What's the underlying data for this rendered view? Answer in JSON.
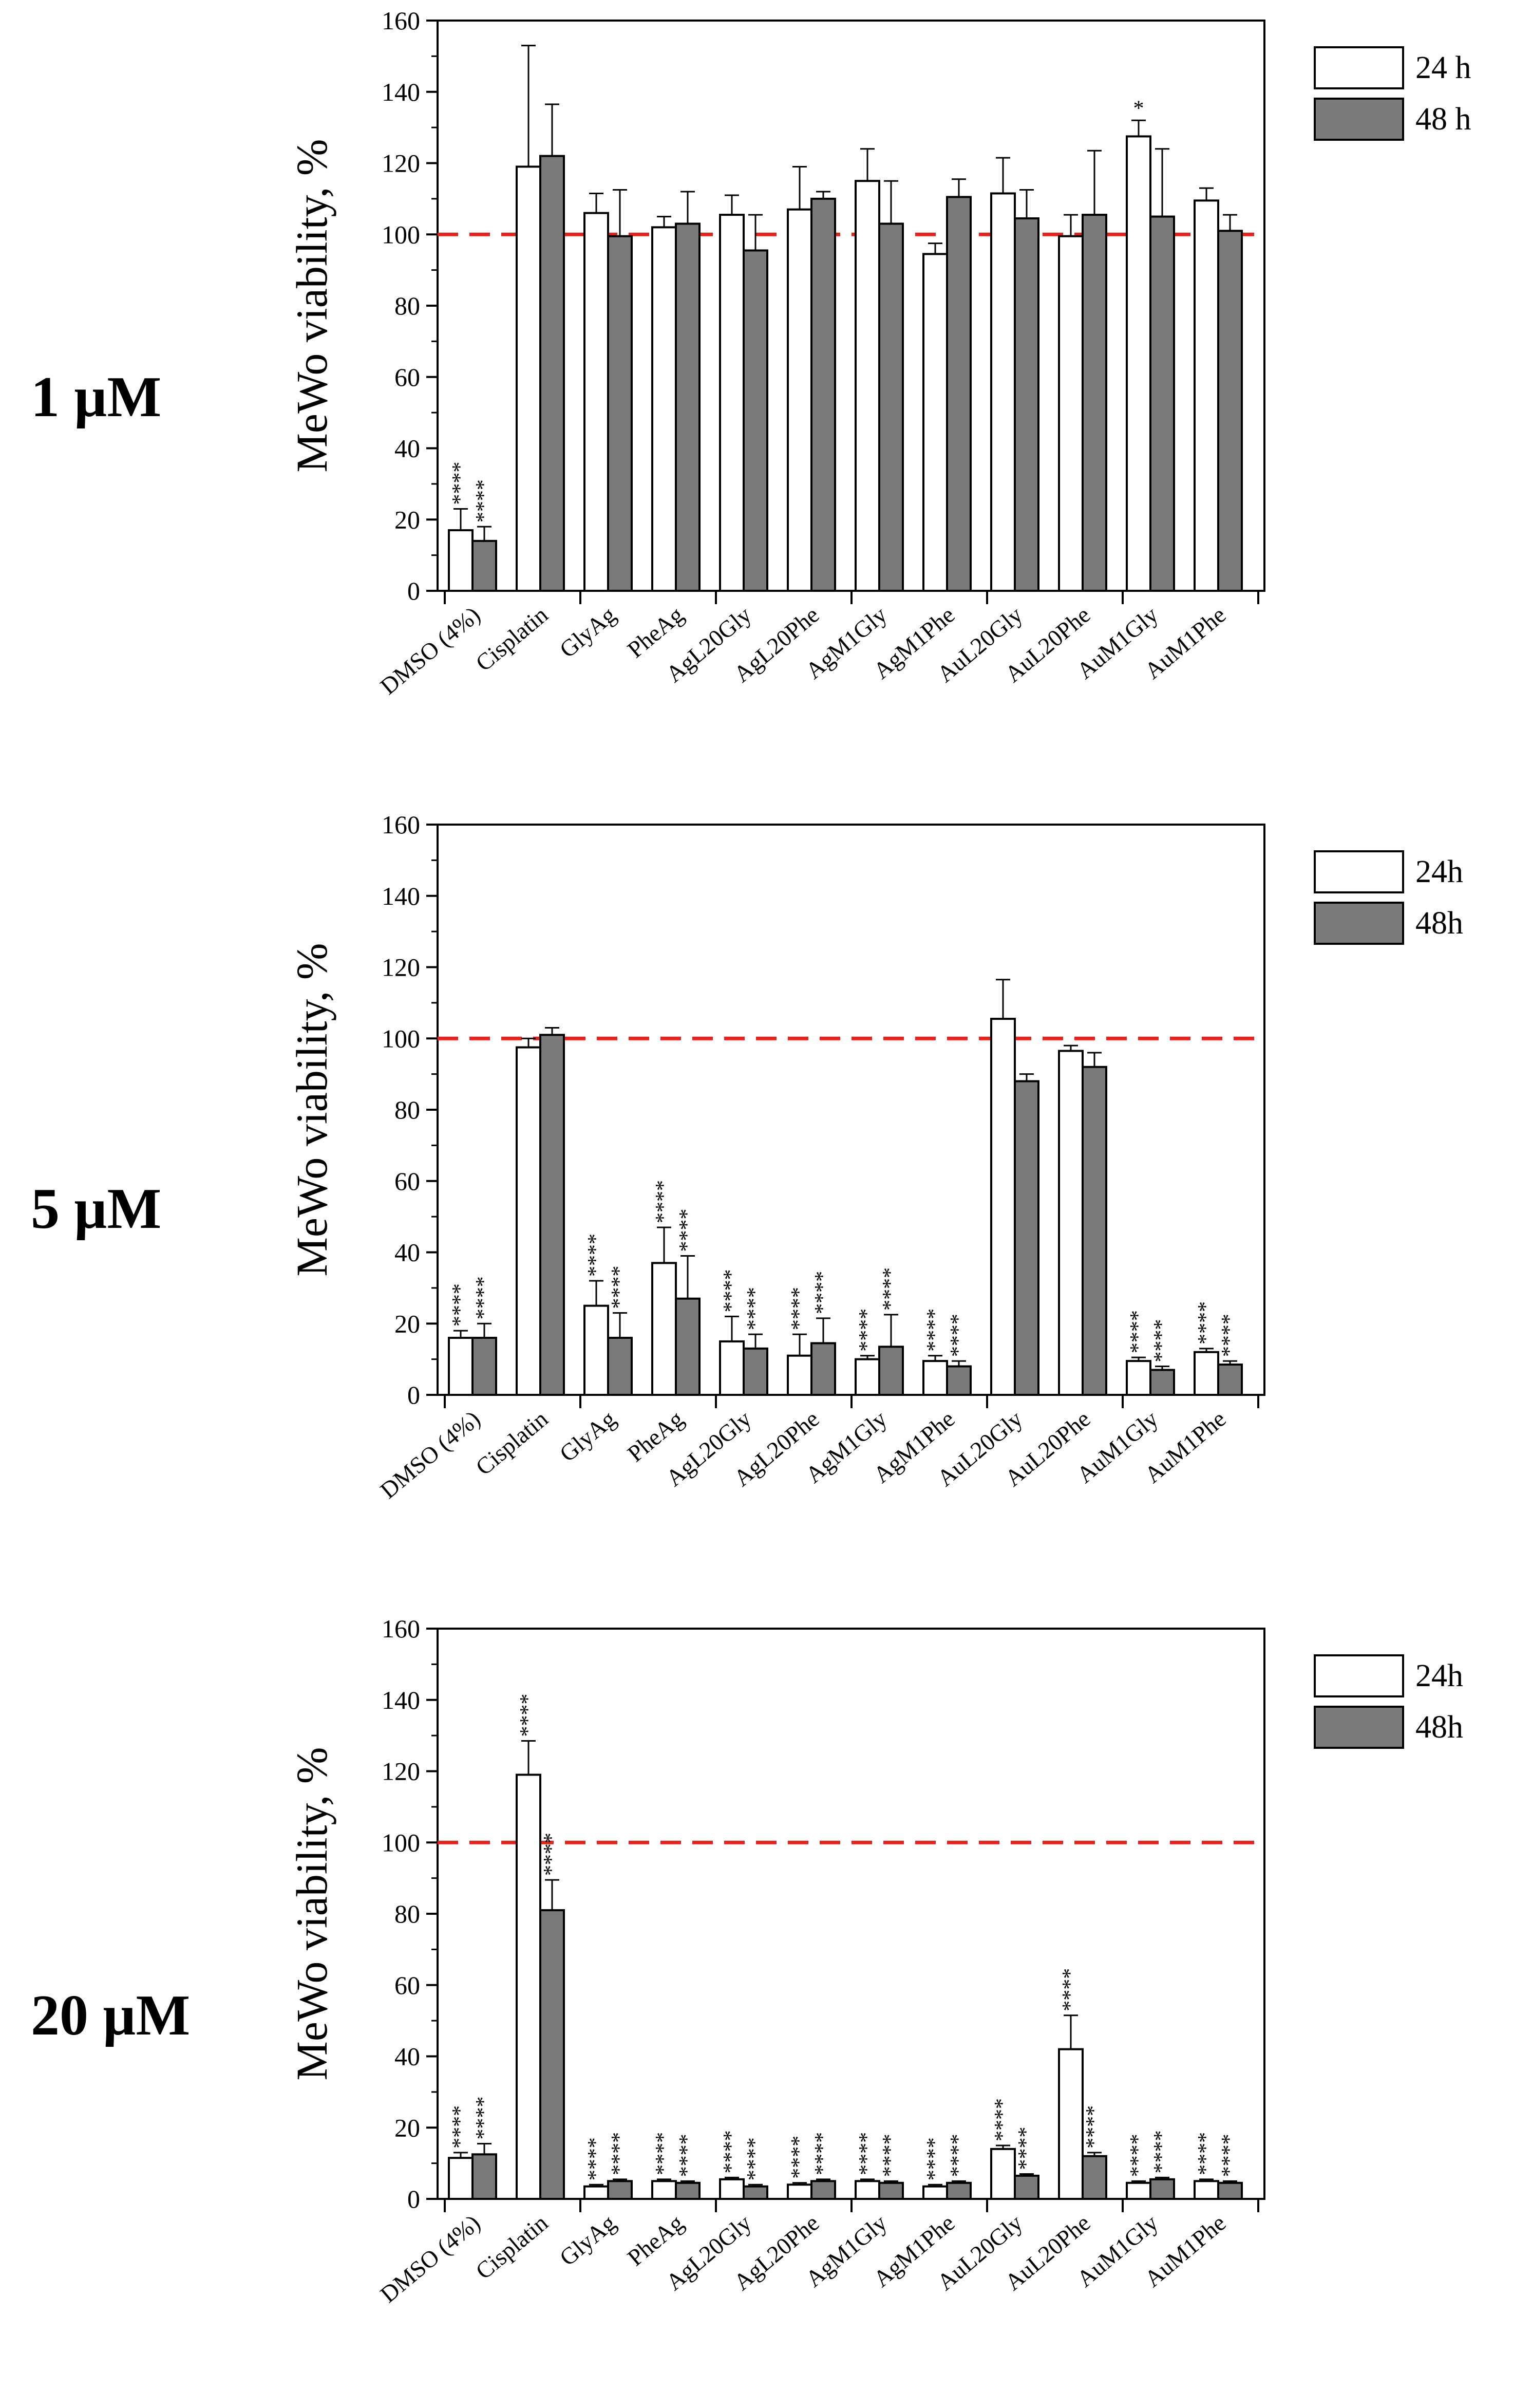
{
  "chart_data": [
    {
      "type": "bar",
      "panel_label": "1 µM",
      "ylabel": "MeWo viability, %",
      "ylim": [
        0,
        160
      ],
      "yticks": [
        "0",
        "20",
        "40",
        "60",
        "80",
        "100",
        "120",
        "140",
        "160"
      ],
      "reference_line": 100,
      "legend": [
        "24 h",
        "48 h"
      ],
      "categories": [
        "DMSO (4%)",
        "Cisplatin",
        "GlyAg",
        "PheAg",
        "AgL20Gly",
        "AgL20Phe",
        "AgM1Gly",
        "AgM1Phe",
        "AuL20Gly",
        "AuL20Phe",
        "AuM1Gly",
        "AuM1Phe"
      ],
      "series": [
        {
          "name": "24 h",
          "values": [
            17,
            119,
            106,
            102,
            105.5,
            107,
            115,
            94.5,
            111.5,
            99.5,
            127.5,
            109.5
          ],
          "errors": [
            6,
            34,
            5.5,
            3,
            5.5,
            12,
            9,
            3,
            10,
            6,
            4.5,
            3.5
          ],
          "sig": [
            "****",
            "",
            "",
            "",
            "",
            "",
            "",
            "",
            "",
            "",
            "*",
            ""
          ]
        },
        {
          "name": "48 h",
          "values": [
            14,
            122,
            99.5,
            103,
            95.5,
            110,
            103,
            110.5,
            104.5,
            105.5,
            105,
            101
          ],
          "errors": [
            4,
            14.5,
            13,
            9,
            10,
            2,
            12,
            5,
            8,
            18,
            19,
            4.5
          ],
          "sig": [
            "****",
            "",
            "",
            "",
            "",
            "",
            "",
            "",
            "",
            "",
            "",
            ""
          ]
        }
      ]
    },
    {
      "type": "bar",
      "panel_label": "5 µM",
      "ylabel": "MeWo viability, %",
      "ylim": [
        0,
        160
      ],
      "yticks": [
        "0",
        "20",
        "40",
        "60",
        "80",
        "100",
        "120",
        "140",
        "160"
      ],
      "reference_line": 100,
      "legend": [
        "24h",
        "48h"
      ],
      "categories": [
        "DMSO (4%)",
        "Cisplatin",
        "GlyAg",
        "PheAg",
        "AgL20Gly",
        "AgL20Phe",
        "AgM1Gly",
        "AgM1Phe",
        "AuL20Gly",
        "AuL20Phe",
        "AuM1Gly",
        "AuM1Phe"
      ],
      "series": [
        {
          "name": "24h",
          "values": [
            16,
            97.5,
            25,
            37,
            15,
            11,
            10,
            9.5,
            105.5,
            96.5,
            9.5,
            12
          ],
          "errors": [
            2,
            2.5,
            7,
            10,
            7,
            6,
            1,
            1.5,
            11,
            1.5,
            1,
            1
          ],
          "sig": [
            "****",
            "",
            "****",
            "****",
            "****",
            "****",
            "****",
            "****",
            "",
            "",
            "****",
            "****"
          ]
        },
        {
          "name": "48h",
          "values": [
            16,
            101,
            16,
            27,
            13,
            14.5,
            13.5,
            8,
            88,
            92,
            7,
            8.5
          ],
          "errors": [
            4,
            2,
            7,
            12,
            4,
            7,
            9,
            1.5,
            2,
            4,
            1,
            1
          ],
          "sig": [
            "****",
            "",
            "****",
            "****",
            "****",
            "****",
            "****",
            "****",
            "",
            "",
            "****",
            "****"
          ]
        }
      ]
    },
    {
      "type": "bar",
      "panel_label": "20 µM",
      "ylabel": "MeWo viability, %",
      "ylim": [
        0,
        160
      ],
      "yticks": [
        "0",
        "20",
        "40",
        "60",
        "80",
        "100",
        "120",
        "140",
        "160"
      ],
      "reference_line": 100,
      "legend": [
        "24h",
        "48h"
      ],
      "categories": [
        "DMSO (4%)",
        "Cisplatin",
        "GlyAg",
        "PheAg",
        "AgL20Gly",
        "AgL20Phe",
        "AgM1Gly",
        "AgM1Phe",
        "AuL20Gly",
        "AuL20Phe",
        "AuM1Gly",
        "AuM1Phe"
      ],
      "series": [
        {
          "name": "24h",
          "values": [
            11.5,
            119,
            3.5,
            5,
            5.5,
            4,
            5,
            3.5,
            14,
            42,
            4.5,
            5
          ],
          "errors": [
            1.5,
            9.5,
            0.5,
            0.5,
            0.5,
            0.5,
            0.5,
            0.5,
            1,
            9.5,
            0.5,
            0.5
          ],
          "sig": [
            "****",
            "****",
            "****",
            "****",
            "****",
            "****",
            "****",
            "****",
            "****",
            "****",
            "****",
            "****"
          ]
        },
        {
          "name": "48h",
          "values": [
            12.5,
            81,
            5,
            4.5,
            3.5,
            5,
            4.5,
            4.5,
            6.5,
            12,
            5.5,
            4.5
          ],
          "errors": [
            3,
            8.5,
            0.5,
            0.5,
            0.5,
            0.5,
            0.5,
            0.5,
            0.5,
            1,
            0.5,
            0.5
          ],
          "sig": [
            "****",
            "****",
            "****",
            "****",
            "****",
            "****",
            "****",
            "****",
            "****",
            "****",
            "****",
            "****"
          ]
        }
      ]
    }
  ]
}
